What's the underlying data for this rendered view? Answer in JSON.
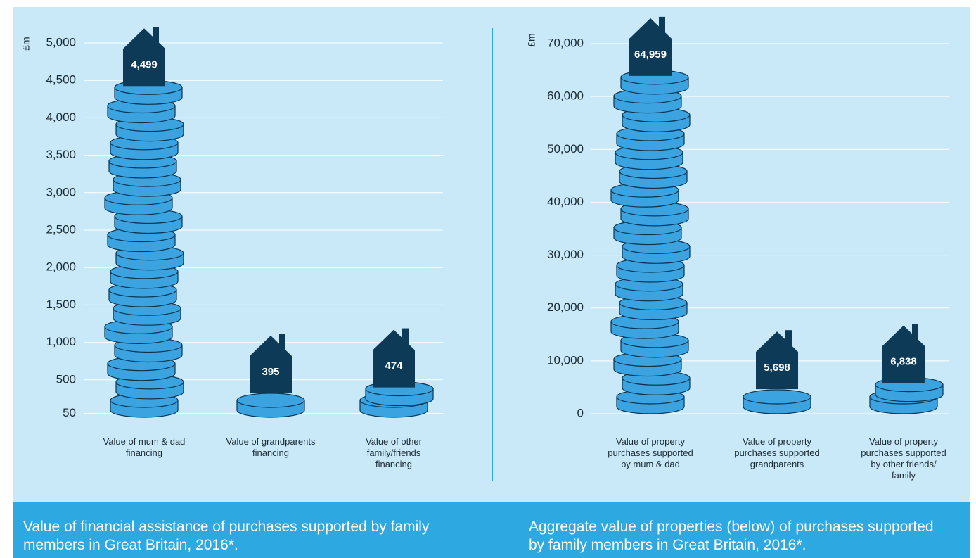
{
  "chart_data": [
    {
      "type": "bar",
      "title": "Value of financial assistance of purchases supported by family members in Great Britain, 2016*.",
      "y_label": "£m",
      "categories": [
        "Value of mum & dad financing",
        "Value of grandparents financing",
        "Value of other family/friends financing"
      ],
      "values": [
        4499,
        395,
        474
      ],
      "value_labels": [
        "4,499",
        "395",
        "474"
      ],
      "color": "#3aa3e0",
      "house_color": "#0c3a57",
      "ylim": [
        0,
        5000
      ],
      "yticks": [
        50,
        500,
        {
          "value": 1000,
          "label": "1,000"
        },
        {
          "value": 1500,
          "label": "1,500"
        },
        {
          "value": 2000,
          "label": "2,000"
        },
        {
          "value": 2500,
          "label": "2,500"
        },
        {
          "value": 3000,
          "label": "3,000"
        },
        {
          "value": 3500,
          "label": "3,500"
        },
        {
          "value": 4000,
          "label": "4,000"
        },
        {
          "value": 4500,
          "label": "4,500"
        },
        {
          "value": 5000,
          "label": "5,000"
        }
      ],
      "grid": true
    },
    {
      "type": "bar",
      "title": "Aggregate value of properties (below) of purchases supported by family members in Great Britain, 2016*.",
      "y_label": "£m",
      "categories": [
        "Value of property purchases supported by mum & dad",
        "Value of property purchases supported grandparents",
        "Value of property purchases supported by other friends/ family"
      ],
      "values": [
        64959,
        5698,
        6838
      ],
      "value_labels": [
        "64,959",
        "5,698",
        "6,838"
      ],
      "color": "#3aa3e0",
      "house_color": "#0c3a57",
      "ylim": [
        0,
        70000
      ],
      "yticks": [
        0,
        {
          "value": 10000,
          "label": "10,000"
        },
        {
          "value": 20000,
          "label": "20,000"
        },
        {
          "value": 30000,
          "label": "30,000"
        },
        {
          "value": 40000,
          "label": "40,000"
        },
        {
          "value": 50000,
          "label": "50,000"
        },
        {
          "value": 60000,
          "label": "60,000"
        },
        {
          "value": 70000,
          "label": "70,000"
        }
      ],
      "grid": true
    }
  ]
}
